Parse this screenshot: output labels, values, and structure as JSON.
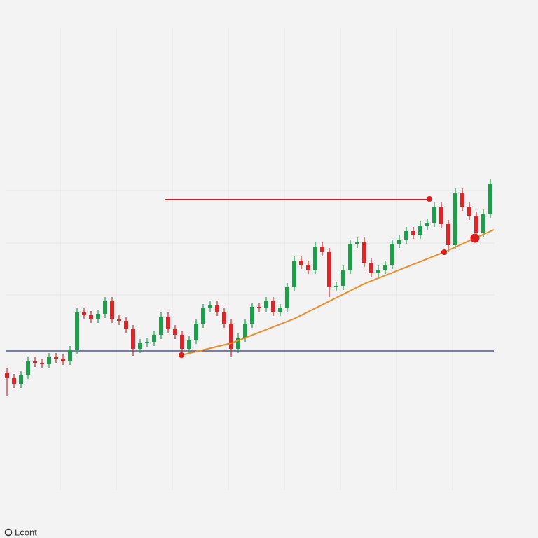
{
  "chart_data": {
    "type": "candlestick",
    "brand": "Lcont",
    "xlim": [
      -0.5,
      69.5
    ],
    "ylim": [
      0,
      768
    ],
    "series": [
      {
        "up_color": "#1f9d4c",
        "down_color": "#d8262b",
        "open": [
          236,
          228,
          220,
          233,
          253,
          250,
          248,
          258,
          256,
          253,
          268,
          323,
          318,
          313,
          320,
          338,
          313,
          310,
          298,
          270,
          278,
          280,
          290,
          316,
          298,
          290,
          270,
          283,
          306,
          328,
          333,
          323,
          306,
          270,
          286,
          306,
          330,
          328,
          338,
          323,
          328,
          358,
          396,
          390,
          383,
          416,
          408,
          358,
          360,
          383,
          420,
          423,
          393,
          378,
          383,
          390,
          420,
          426,
          438,
          433,
          446,
          450,
          473,
          448,
          418,
          493,
          473,
          460,
          436,
          463
        ],
        "high": [
          242,
          234,
          239,
          259,
          259,
          256,
          264,
          264,
          262,
          274,
          329,
          329,
          324,
          326,
          344,
          344,
          319,
          316,
          304,
          284,
          286,
          296,
          322,
          322,
          304,
          296,
          289,
          312,
          334,
          339,
          339,
          329,
          312,
          292,
          312,
          336,
          336,
          344,
          344,
          334,
          364,
          402,
          402,
          396,
          422,
          422,
          414,
          366,
          389,
          426,
          429,
          429,
          399,
          389,
          396,
          426,
          432,
          444,
          444,
          452,
          456,
          479,
          479,
          454,
          499,
          499,
          479,
          466,
          469,
          512
        ],
        "low": [
          202,
          214,
          214,
          227,
          244,
          242,
          242,
          250,
          247,
          247,
          262,
          312,
          307,
          307,
          314,
          307,
          304,
          292,
          260,
          264,
          272,
          274,
          284,
          292,
          284,
          262,
          264,
          277,
          300,
          322,
          317,
          300,
          258,
          264,
          280,
          300,
          322,
          322,
          317,
          317,
          322,
          352,
          384,
          377,
          377,
          402,
          344,
          352,
          354,
          377,
          414,
          387,
          372,
          372,
          377,
          384,
          414,
          420,
          427,
          427,
          440,
          444,
          442,
          408,
          412,
          467,
          454,
          428,
          430,
          457
        ],
        "close": [
          228,
          220,
          233,
          253,
          250,
          248,
          258,
          256,
          253,
          268,
          323,
          318,
          313,
          320,
          338,
          313,
          310,
          298,
          270,
          278,
          280,
          290,
          316,
          298,
          290,
          270,
          283,
          306,
          328,
          333,
          323,
          306,
          270,
          286,
          306,
          330,
          328,
          338,
          323,
          328,
          358,
          396,
          390,
          383,
          416,
          408,
          358,
          360,
          383,
          420,
          423,
          393,
          378,
          383,
          390,
          420,
          426,
          438,
          433,
          446,
          450,
          473,
          448,
          418,
          493,
          473,
          460,
          436,
          463,
          506
        ]
      }
    ],
    "support": {
      "value": 267,
      "color": "#2b3a80"
    },
    "resistance": {
      "value": 483,
      "x": [
        22.5,
        60.3
      ],
      "color": "#d11f1f"
    },
    "trendline": {
      "x": [
        24.9,
        32,
        41,
        51,
        62.4,
        66.8,
        69.5
      ],
      "y": [
        261,
        278,
        313,
        363,
        408,
        428,
        440
      ],
      "color": "#f08a24"
    },
    "points": {
      "x": [
        24.9,
        60.3,
        62.4,
        66.8
      ],
      "y": [
        261,
        484,
        408,
        428
      ],
      "size": [
        4,
        4,
        4,
        6.5
      ],
      "color": "#e01b1b"
    }
  }
}
